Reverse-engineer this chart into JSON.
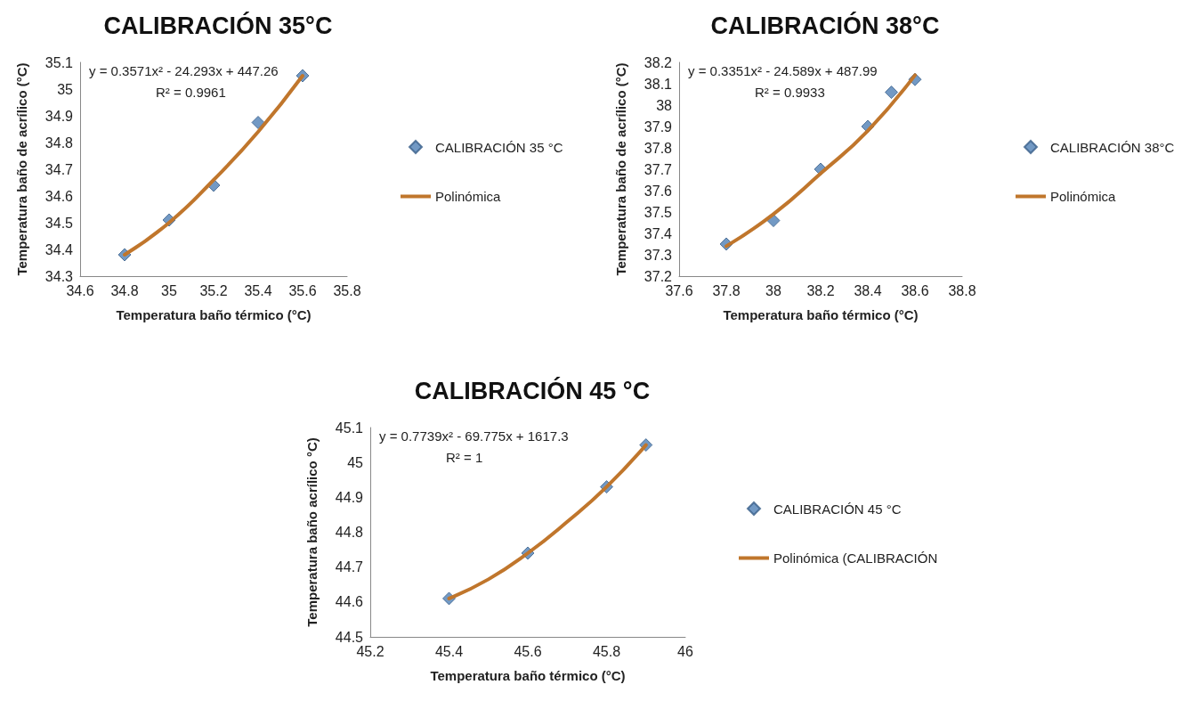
{
  "chart_data": [
    {
      "type": "scatter",
      "title": "CALIBRACIÓN 35°C",
      "xlabel": "Temperatura baño térmico (°C)",
      "ylabel": "Temperatura baño de acrílico (°C)",
      "annotations": [
        "y = 0.3571x² - 24.293x + 447.26",
        "R² = 0.9961"
      ],
      "x": [
        34.8,
        35.0,
        35.2,
        35.4,
        35.6
      ],
      "series": [
        {
          "name": "CALIBRACIÓN 35 °C",
          "color": "#4f7fb5",
          "values": [
            34.38,
            34.51,
            34.64,
            34.875,
            35.05
          ]
        },
        {
          "name": "Polinómica",
          "type": "line",
          "marker": "none",
          "color": "#c0762c",
          "x": [
            34.8,
            35.0,
            35.2,
            35.4,
            35.6
          ],
          "values": [
            34.38,
            34.5,
            34.66,
            34.84,
            35.05
          ]
        }
      ],
      "xlim": [
        34.6,
        35.8
      ],
      "xticks": [
        34.6,
        34.8,
        35,
        35.2,
        35.4,
        35.6,
        35.8
      ],
      "ylim": [
        34.3,
        35.1
      ],
      "yticks": [
        34.3,
        34.4,
        34.5,
        34.6,
        34.7,
        34.8,
        34.9,
        35,
        35.1
      ],
      "grid": false,
      "legend": "right",
      "marker": "diamond",
      "line_style": "solid"
    },
    {
      "type": "scatter",
      "title": "CALIBRACIÓN 38°C",
      "xlabel": "Temperatura baño térmico (°C)",
      "ylabel": "Temperatura baño de acrílico (°C)",
      "annotations": [
        "y = 0.3351x² - 24.589x + 487.99",
        "R² = 0.9933"
      ],
      "x": [
        37.8,
        38.0,
        38.2,
        38.4,
        38.5,
        38.6
      ],
      "series": [
        {
          "name": "CALIBRACIÓN 38°C",
          "color": "#4f7fb5",
          "values": [
            37.35,
            37.46,
            37.7,
            37.9,
            38.06,
            38.12
          ]
        },
        {
          "name": "Polinómica",
          "type": "line",
          "marker": "none",
          "color": "#c0762c",
          "x": [
            37.8,
            38.0,
            38.2,
            38.4,
            38.6
          ],
          "values": [
            37.34,
            37.49,
            37.68,
            37.88,
            38.14
          ]
        }
      ],
      "xlim": [
        37.6,
        38.8
      ],
      "xticks": [
        37.6,
        37.8,
        38,
        38.2,
        38.4,
        38.6,
        38.8
      ],
      "ylim": [
        37.2,
        38.2
      ],
      "yticks": [
        37.2,
        37.3,
        37.4,
        37.5,
        37.6,
        37.7,
        37.8,
        37.9,
        38,
        38.1,
        38.2
      ],
      "grid": false,
      "legend": "right",
      "marker": "diamond",
      "line_style": "solid"
    },
    {
      "type": "scatter",
      "title": "CALIBRACIÓN 45 °C",
      "xlabel": "Temperatura baño térmico (°C)",
      "ylabel": "Temperatura baño acrílico °C)",
      "annotations": [
        "y = 0.7739x² - 69.775x + 1617.3",
        "R² = 1"
      ],
      "x": [
        45.4,
        45.6,
        45.8,
        45.9
      ],
      "series": [
        {
          "name": "CALIBRACIÓN 45 °C",
          "color": "#4f7fb5",
          "values": [
            44.61,
            44.74,
            44.93,
            45.05
          ]
        },
        {
          "name": "Polinómica (CALIBRACIÓN",
          "type": "line",
          "marker": "none",
          "color": "#c0762c",
          "x": [
            45.4,
            45.5,
            45.6,
            45.7,
            45.8,
            45.9
          ],
          "values": [
            44.61,
            44.665,
            44.74,
            44.83,
            44.93,
            45.05
          ]
        }
      ],
      "xlim": [
        45.2,
        46
      ],
      "xticks": [
        45.2,
        45.4,
        45.6,
        45.8,
        46
      ],
      "ylim": [
        44.5,
        45.1
      ],
      "yticks": [
        44.5,
        44.6,
        44.7,
        44.8,
        44.9,
        45,
        45.1
      ],
      "grid": false,
      "legend": "right",
      "marker": "diamond",
      "line_style": "solid"
    }
  ]
}
